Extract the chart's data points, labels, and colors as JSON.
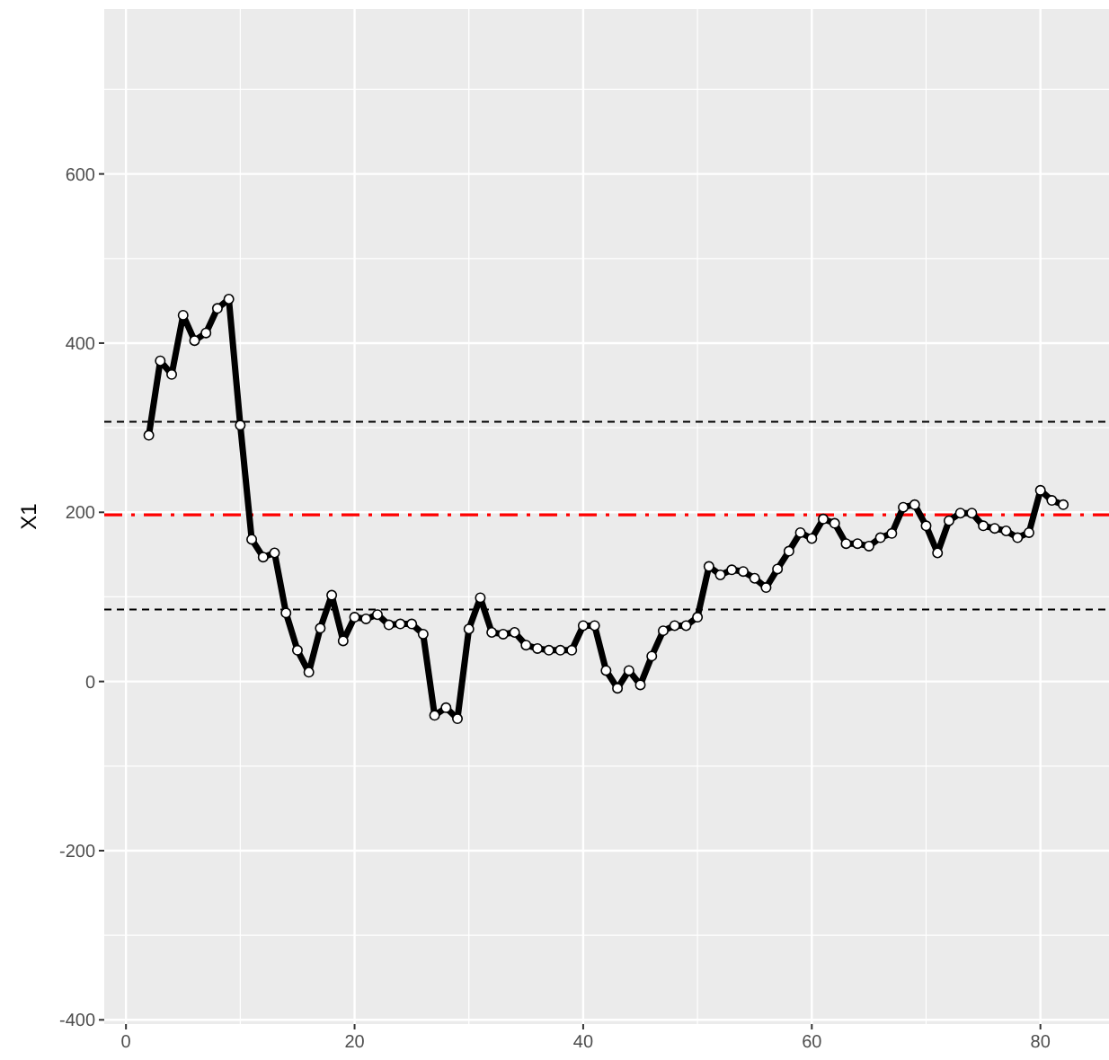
{
  "chart_data": {
    "type": "line",
    "ylabel": "X1",
    "x": [
      2,
      3,
      4,
      5,
      6,
      7,
      8,
      9,
      10,
      11,
      12,
      13,
      14,
      15,
      16,
      17,
      18,
      19,
      20,
      21,
      22,
      23,
      24,
      25,
      26,
      27,
      28,
      29,
      30,
      31,
      32,
      33,
      34,
      35,
      36,
      37,
      38,
      39,
      40,
      41,
      42,
      43,
      44,
      45,
      46,
      47,
      48,
      49,
      50,
      51,
      52,
      53,
      54,
      55,
      56,
      57,
      58,
      59,
      60,
      61,
      62,
      63,
      64,
      65,
      66,
      67,
      68,
      69,
      70,
      71,
      72,
      73,
      74,
      75,
      76,
      77,
      78,
      79,
      80,
      81,
      82
    ],
    "series": [
      {
        "color": "#000000",
        "values": [
          291,
          379,
          363,
          433,
          403,
          412,
          441,
          452,
          303,
          168,
          147,
          152,
          81,
          37,
          11,
          63,
          102,
          48,
          76,
          74,
          79,
          67,
          68,
          68,
          56,
          -40,
          -31,
          -44,
          62,
          99,
          58,
          56,
          58,
          43,
          39,
          37,
          37,
          37,
          66,
          66,
          13,
          -8,
          13,
          -4,
          30,
          60,
          66,
          66,
          76,
          136,
          126,
          132,
          130,
          122,
          111,
          133,
          154,
          176,
          169,
          192,
          187,
          163,
          163,
          160,
          170,
          175,
          206,
          209,
          184,
          152,
          190,
          199,
          199,
          184,
          181,
          178,
          170,
          176,
          226,
          214,
          209
        ]
      }
    ],
    "ref_lines": [
      {
        "axis": "y",
        "value": 307,
        "color": "#000000",
        "line_style": "dashed"
      },
      {
        "axis": "y",
        "value": 197,
        "color": "#ff0000",
        "line_style": "dashdot"
      },
      {
        "axis": "y",
        "value": 85,
        "color": "#000000",
        "line_style": "dashed"
      }
    ],
    "xlim": [
      -1.9,
      86
    ],
    "xticks": [
      0,
      20,
      40,
      60,
      80
    ],
    "ylim": [
      -405,
      795
    ],
    "yticks": [
      -400,
      -200,
      0,
      200,
      400,
      600
    ],
    "grid": true,
    "marker": "circle",
    "line_style": "solid"
  }
}
